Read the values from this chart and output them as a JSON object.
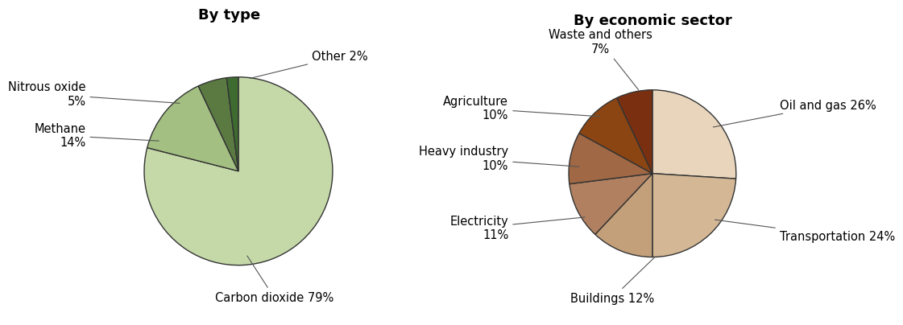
{
  "chart1": {
    "title": "By type",
    "values": [
      79,
      14,
      5,
      2
    ],
    "colors": [
      "#c5d9a8",
      "#a3bf82",
      "#5a7a42",
      "#3d6b30"
    ],
    "startangle": 90
  },
  "chart2": {
    "title": "By economic sector",
    "values": [
      26,
      24,
      12,
      11,
      10,
      10,
      7
    ],
    "colors": [
      "#e8d5bc",
      "#d4b896",
      "#c4a07a",
      "#b08060",
      "#a06844",
      "#8b4513",
      "#7a3010"
    ],
    "startangle": 90
  },
  "background_color": "#ffffff",
  "title_fontsize": 13,
  "label_fontsize": 10.5,
  "wedge_linewidth": 1.0,
  "wedge_edgecolor": "#333333",
  "arrow_color": "#555555"
}
